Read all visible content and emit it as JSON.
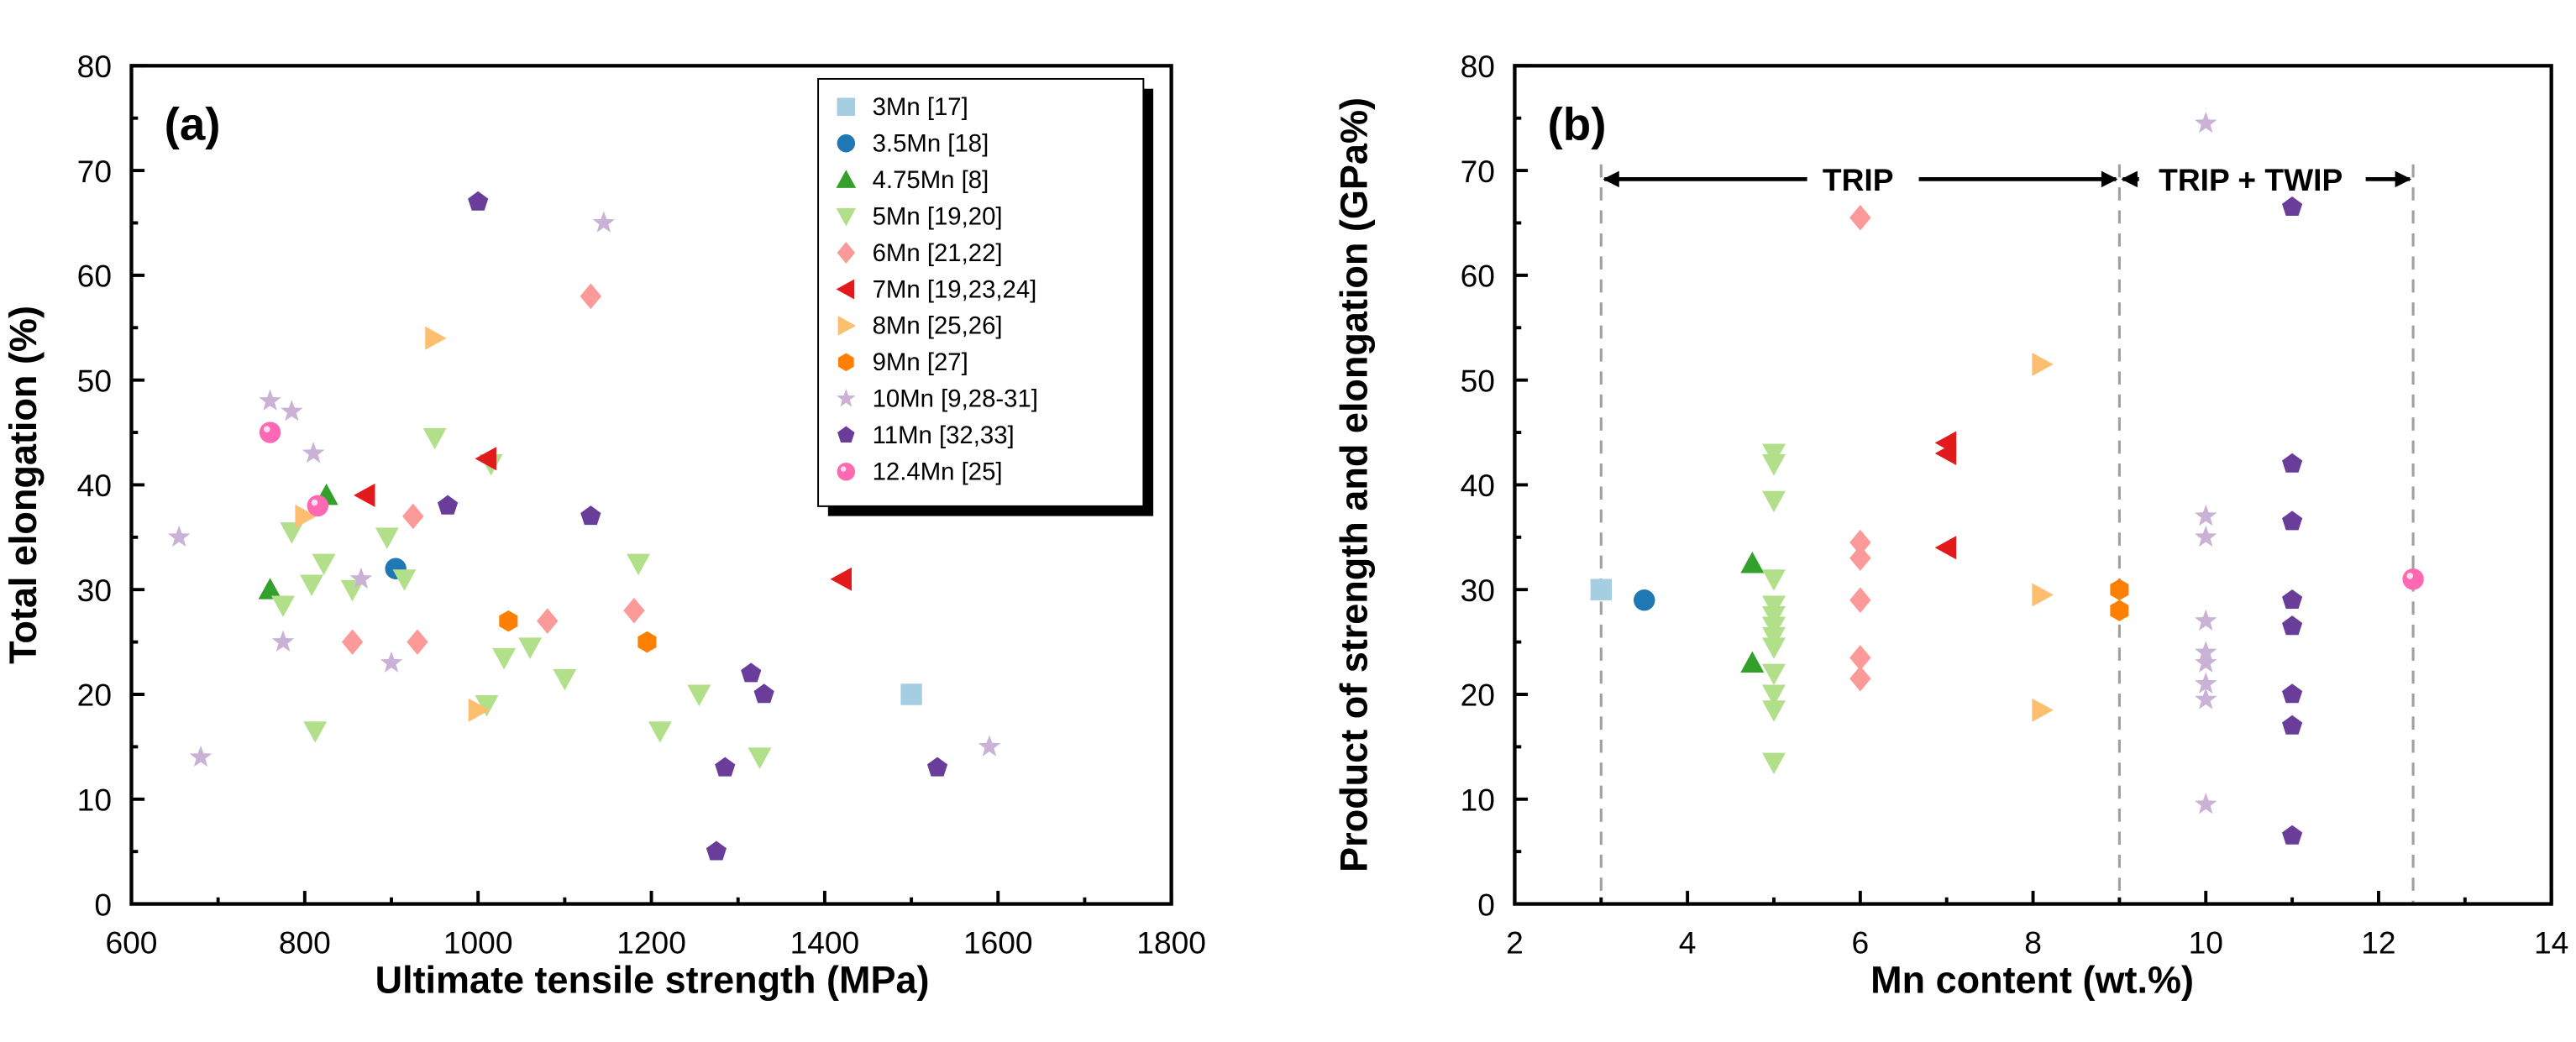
{
  "chart_data": [
    {
      "type": "scatter",
      "panel_label": "(a)",
      "title": "",
      "xlabel": "Ultimate tensile strength (MPa)",
      "ylabel": "Total elongation (%)",
      "xlim": [
        600,
        1800
      ],
      "ylim": [
        0,
        80
      ],
      "xticks": [
        600,
        800,
        1000,
        1200,
        1400,
        1600,
        1800
      ],
      "yticks": [
        0,
        10,
        20,
        30,
        40,
        50,
        60,
        70,
        80
      ],
      "grid": false,
      "legend_position": "top-right",
      "series": [
        {
          "name": "3Mn [17]",
          "marker": "square",
          "color": "#a6cee3",
          "points": [
            [
              1500,
              20
            ]
          ]
        },
        {
          "name": "3.5Mn [18]",
          "marker": "circle",
          "color": "#1f78b4",
          "points": [
            [
              905,
              32
            ]
          ]
        },
        {
          "name": "4.75Mn [8]",
          "marker": "triangle-up",
          "color": "#33a02c",
          "points": [
            [
              760,
              30
            ],
            [
              825,
              39
            ]
          ]
        },
        {
          "name": "5Mn [19,20]",
          "marker": "triangle-down",
          "color": "#b2df8a",
          "points": [
            [
              775,
              28.5
            ],
            [
              785,
              35.5
            ],
            [
              808,
              30.5
            ],
            [
              812,
              16.5
            ],
            [
              822,
              32.5
            ],
            [
              855,
              30
            ],
            [
              895,
              35
            ],
            [
              915,
              31
            ],
            [
              950,
              44.5
            ],
            [
              1015,
              42
            ],
            [
              1010,
              19
            ],
            [
              1030,
              23.5
            ],
            [
              1060,
              24.5
            ],
            [
              1100,
              21.5
            ],
            [
              1185,
              32.5
            ],
            [
              1210,
              16.5
            ],
            [
              1255,
              20
            ],
            [
              1325,
              14
            ]
          ]
        },
        {
          "name": "6Mn [21,22]",
          "marker": "diamond",
          "color": "#fb9a99",
          "points": [
            [
              855,
              25
            ],
            [
              925,
              37
            ],
            [
              930,
              25
            ],
            [
              1080,
              27
            ],
            [
              1130,
              58
            ],
            [
              1180,
              28
            ]
          ]
        },
        {
          "name": "7Mn [19,23,24]",
          "marker": "triangle-left",
          "color": "#e31a1c",
          "points": [
            [
              870,
              39
            ],
            [
              1010,
              42.5
            ],
            [
              1420,
              31
            ]
          ]
        },
        {
          "name": "8Mn [25,26]",
          "marker": "triangle-right",
          "color": "#fdbf6f",
          "points": [
            [
              800,
              37
            ],
            [
              950,
              54
            ],
            [
              1000,
              18.5
            ]
          ]
        },
        {
          "name": "9Mn [27]",
          "marker": "hexagon",
          "color": "#ff7f00",
          "points": [
            [
              1035,
              27
            ],
            [
              1195,
              25
            ]
          ]
        },
        {
          "name": "10Mn [9,28-31]",
          "marker": "star",
          "color": "#cab2d6",
          "points": [
            [
              655,
              35
            ],
            [
              680,
              14
            ],
            [
              760,
              48
            ],
            [
              775,
              25
            ],
            [
              785,
              47
            ],
            [
              810,
              43
            ],
            [
              865,
              31
            ],
            [
              900,
              23
            ],
            [
              1145,
              65
            ],
            [
              1590,
              15
            ]
          ]
        },
        {
          "name": "11Mn [32,33]",
          "marker": "pentagon",
          "color": "#6a3d9a",
          "points": [
            [
              1000,
              67
            ],
            [
              965,
              38
            ],
            [
              1130,
              37
            ],
            [
              1275,
              5
            ],
            [
              1285,
              13
            ],
            [
              1315,
              22
            ],
            [
              1330,
              20
            ],
            [
              1530,
              13
            ]
          ]
        },
        {
          "name": "12.4Mn [25]",
          "marker": "sphere",
          "color": "#ff69b4",
          "points": [
            [
              760,
              45
            ],
            [
              815,
              38
            ]
          ]
        }
      ]
    },
    {
      "type": "scatter",
      "panel_label": "(b)",
      "title": "",
      "xlabel": "Mn content (wt.%)",
      "ylabel": "Product of strength and elongation (GPa%)",
      "xlim": [
        2,
        14
      ],
      "ylim": [
        0,
        80
      ],
      "xticks": [
        2,
        4,
        6,
        8,
        10,
        12,
        14
      ],
      "yticks": [
        0,
        10,
        20,
        30,
        40,
        50,
        60,
        70,
        80
      ],
      "grid": false,
      "annotations": [
        {
          "text": "TRIP",
          "x_range": [
            3,
            9
          ],
          "y": 69,
          "arrows": "both"
        },
        {
          "text": "TRIP + TWIP",
          "x_range": [
            9,
            12.4
          ],
          "y": 69,
          "arrows": "both"
        }
      ],
      "vertical_dashed_lines_x": [
        3,
        9,
        12.4
      ],
      "series": [
        {
          "name": "3Mn [17]",
          "marker": "square",
          "color": "#a6cee3",
          "points": [
            [
              3,
              30
            ]
          ]
        },
        {
          "name": "3.5Mn [18]",
          "marker": "circle",
          "color": "#1f78b4",
          "points": [
            [
              3.5,
              29
            ]
          ]
        },
        {
          "name": "4.75Mn [8]",
          "marker": "triangle-up",
          "color": "#33a02c",
          "points": [
            [
              4.75,
              32.5
            ],
            [
              4.75,
              23
            ]
          ]
        },
        {
          "name": "5Mn [19,20]",
          "marker": "triangle-down",
          "color": "#b2df8a",
          "points": [
            [
              5,
              43
            ],
            [
              5,
              42
            ],
            [
              5,
              38.5
            ],
            [
              5,
              31
            ],
            [
              5,
              28.5
            ],
            [
              5,
              27.5
            ],
            [
              5,
              26.5
            ],
            [
              5,
              25.5
            ],
            [
              5,
              24.5
            ],
            [
              5,
              22
            ],
            [
              5,
              20
            ],
            [
              5,
              18.5
            ],
            [
              5,
              13.5
            ]
          ]
        },
        {
          "name": "6Mn [21,22]",
          "marker": "diamond",
          "color": "#fb9a99",
          "points": [
            [
              6,
              65.5
            ],
            [
              6,
              34.5
            ],
            [
              6,
              33
            ],
            [
              6,
              29
            ],
            [
              6,
              23.5
            ],
            [
              6,
              21.5
            ]
          ]
        },
        {
          "name": "7Mn [19,23,24]",
          "marker": "triangle-left",
          "color": "#e31a1c",
          "points": [
            [
              7,
              44
            ],
            [
              7,
              43
            ],
            [
              7,
              34
            ]
          ]
        },
        {
          "name": "8Mn [25,26]",
          "marker": "triangle-right",
          "color": "#fdbf6f",
          "points": [
            [
              8.1,
              51.5
            ],
            [
              8.1,
              29.5
            ],
            [
              8.1,
              18.5
            ]
          ]
        },
        {
          "name": "9Mn [27]",
          "marker": "hexagon",
          "color": "#ff7f00",
          "points": [
            [
              9,
              30
            ],
            [
              9,
              28
            ]
          ]
        },
        {
          "name": "10Mn [9,28-31]",
          "marker": "star",
          "color": "#cab2d6",
          "points": [
            [
              10,
              74.5
            ],
            [
              10,
              37
            ],
            [
              10,
              35
            ],
            [
              10,
              27
            ],
            [
              10,
              24
            ],
            [
              10,
              23
            ],
            [
              10,
              21
            ],
            [
              10,
              19.5
            ],
            [
              10,
              9.5
            ]
          ]
        },
        {
          "name": "11Mn [32,33]",
          "marker": "pentagon",
          "color": "#6a3d9a",
          "points": [
            [
              11,
              66.5
            ],
            [
              11,
              42
            ],
            [
              11,
              36.5
            ],
            [
              11,
              29
            ],
            [
              11,
              26.5
            ],
            [
              11,
              20
            ],
            [
              11,
              17
            ],
            [
              11,
              6.5
            ]
          ]
        },
        {
          "name": "12.4Mn [25]",
          "marker": "sphere",
          "color": "#ff69b4",
          "points": [
            [
              12.4,
              31
            ]
          ]
        }
      ]
    }
  ]
}
